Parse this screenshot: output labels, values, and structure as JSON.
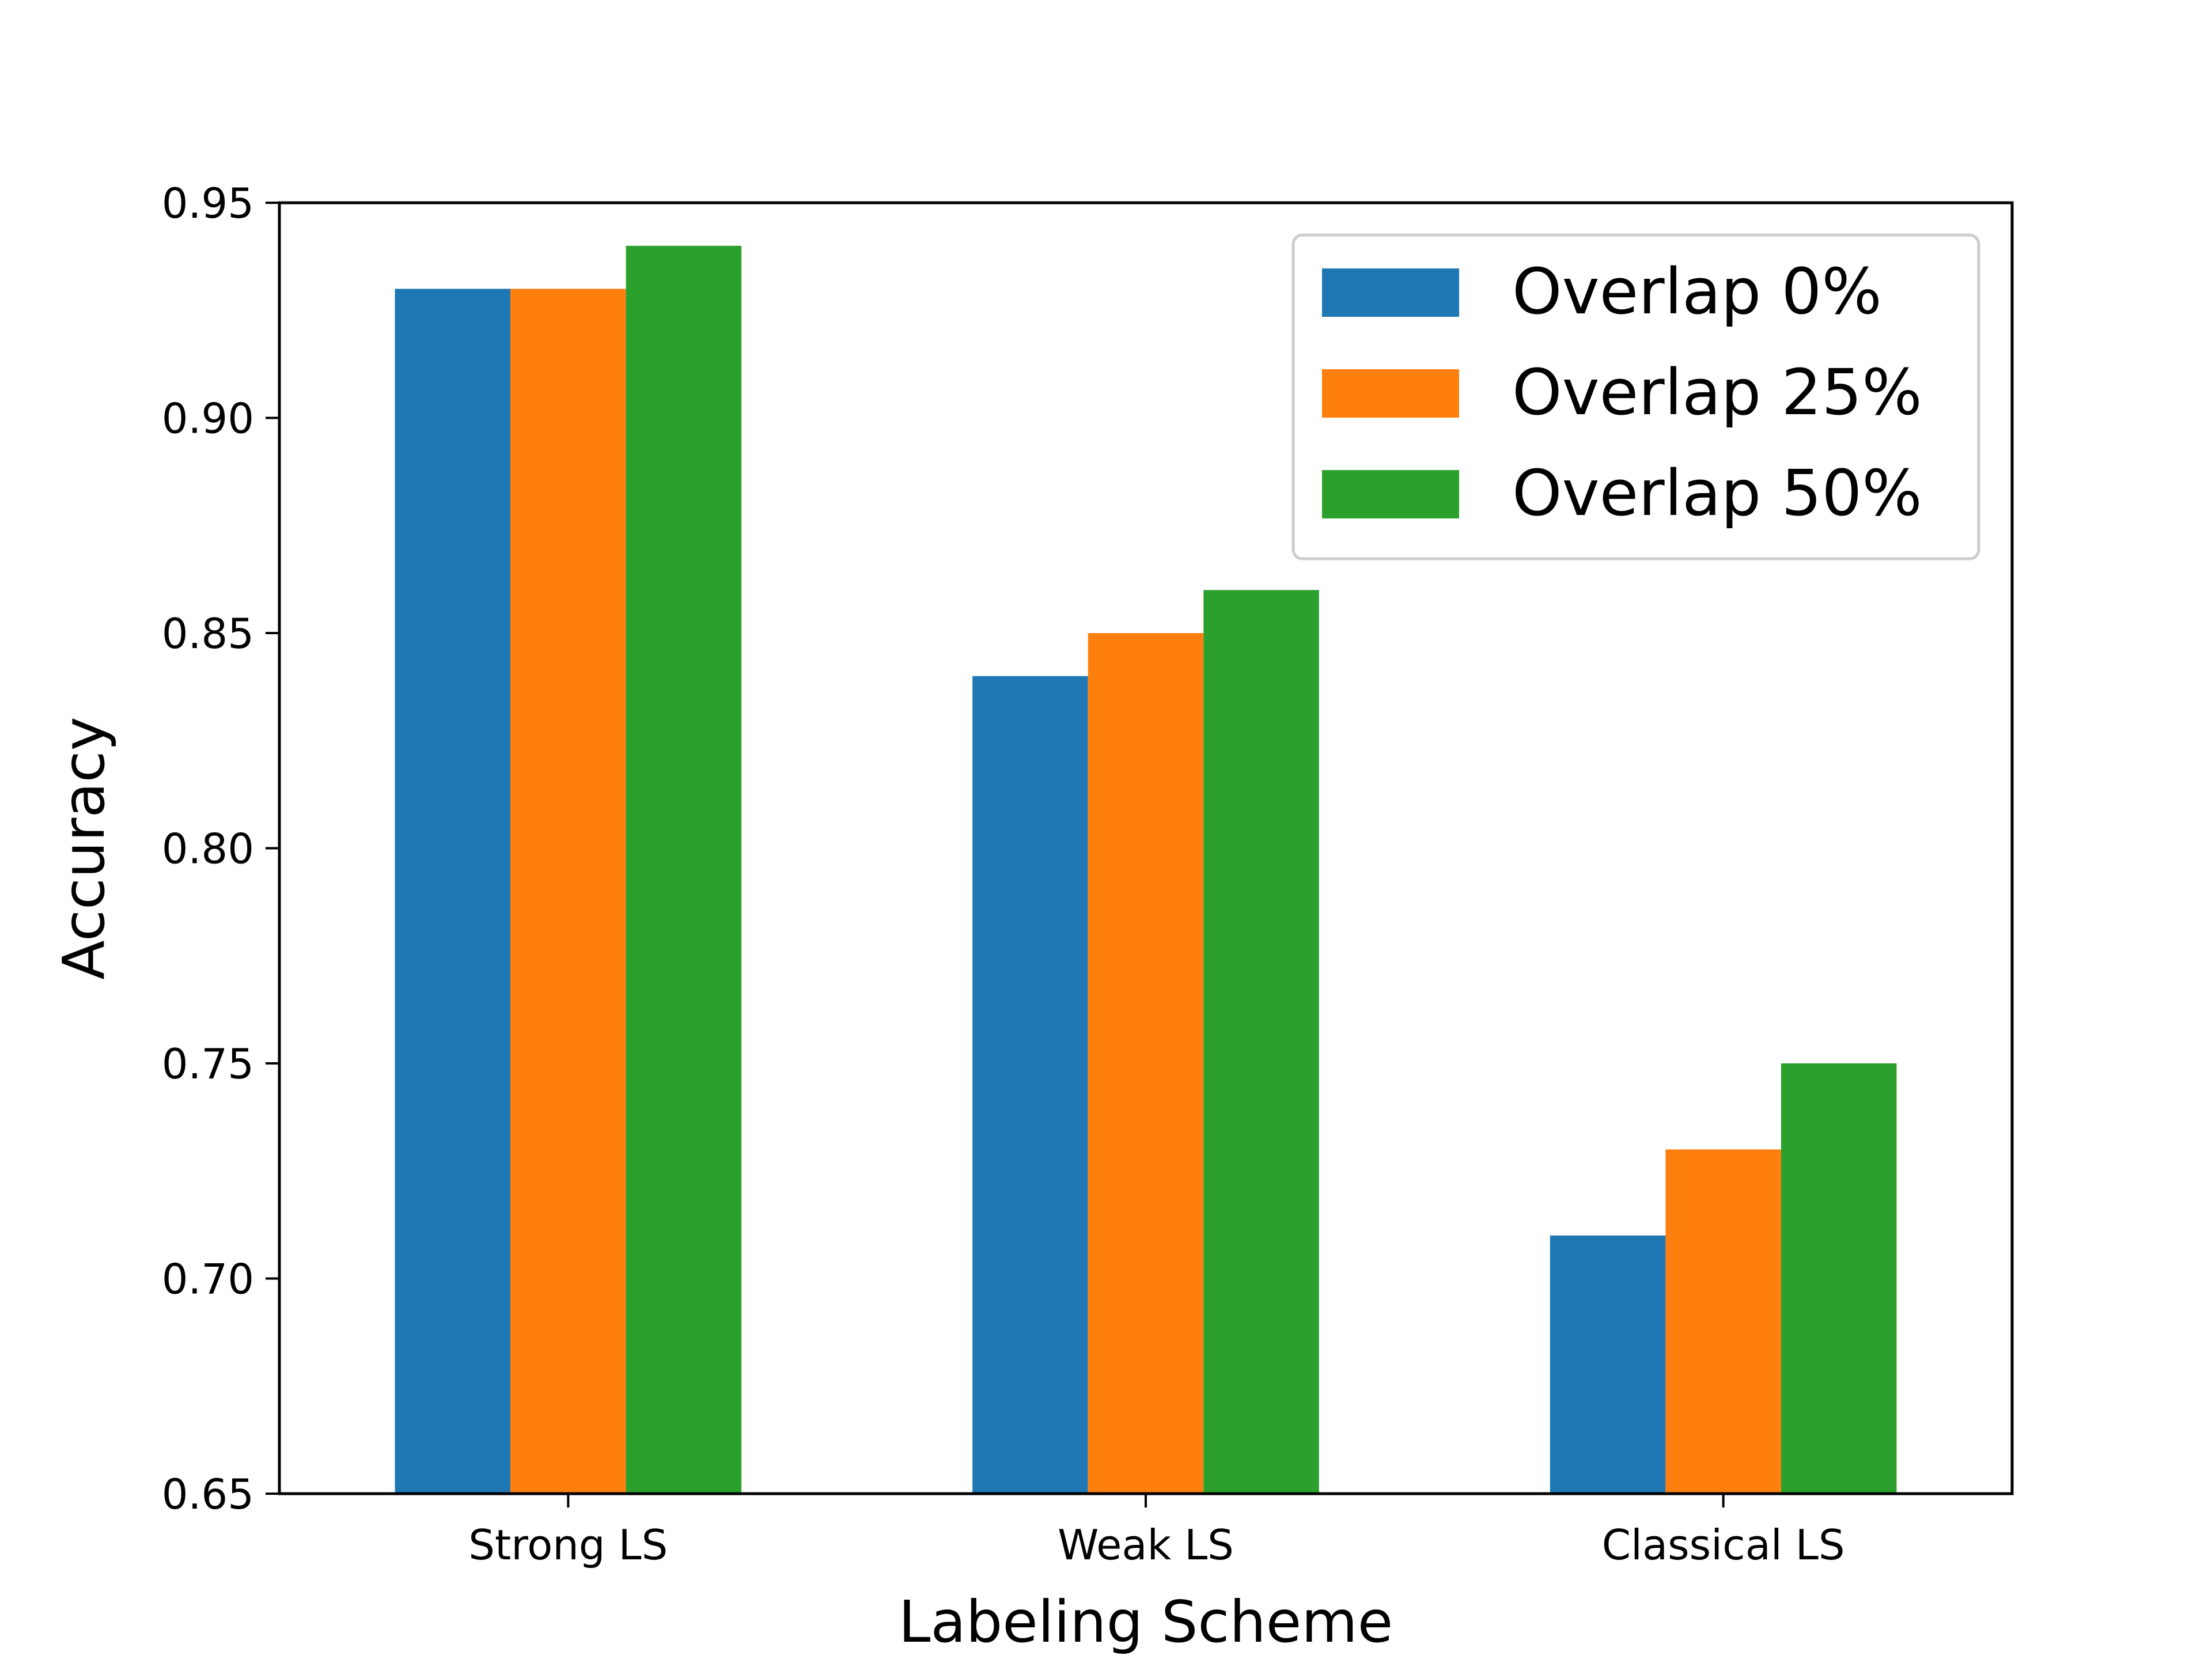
{
  "chart_data": {
    "type": "bar",
    "title": "",
    "xlabel": "Labeling Scheme",
    "ylabel": "Accuracy",
    "categories": [
      "Strong LS",
      "Weak LS",
      "Classical LS"
    ],
    "series": [
      {
        "name": "Overlap 0%",
        "values": [
          0.93,
          0.84,
          0.71
        ],
        "color": "#1f77b4"
      },
      {
        "name": "Overlap 25%",
        "values": [
          0.93,
          0.85,
          0.73
        ],
        "color": "#ff7f0e"
      },
      {
        "name": "Overlap 50%",
        "values": [
          0.94,
          0.86,
          0.75
        ],
        "color": "#2ca02c"
      }
    ],
    "ylim": [
      0.65,
      0.95
    ],
    "yticks": [
      "0.65",
      "0.70",
      "0.75",
      "0.80",
      "0.85",
      "0.90",
      "0.95"
    ],
    "grid": false,
    "legend_position": "top-right"
  }
}
